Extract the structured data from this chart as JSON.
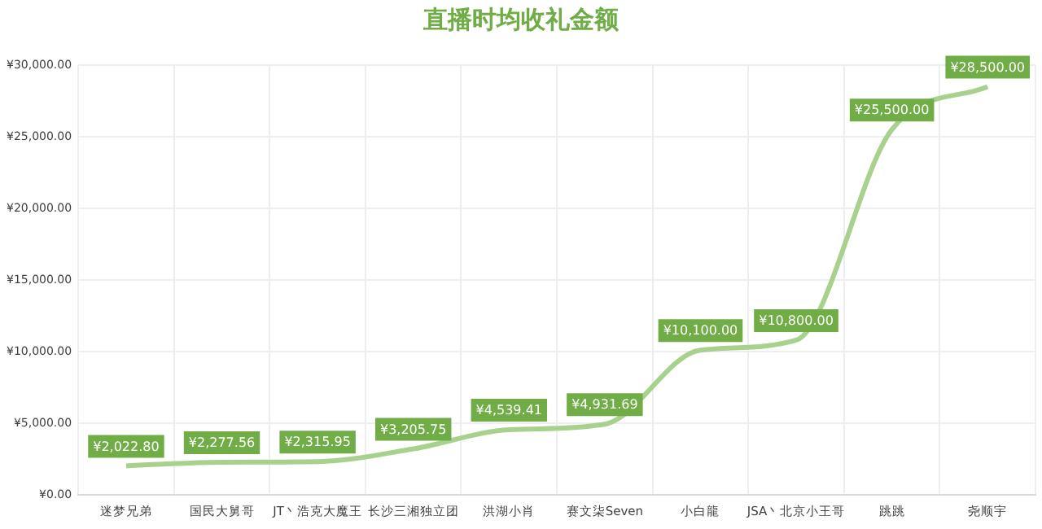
{
  "chart_data": {
    "type": "line",
    "title": "直播时均收礼金额",
    "categories": [
      "迷梦兄弟",
      "国民大舅哥",
      "JT丶浩克大魔王",
      "长沙三湘独立团",
      "洪湖小肖",
      "赛文柒Seven",
      "小白龍",
      "JSA丶北京小王哥",
      "跳跳",
      "尧顺宇"
    ],
    "series": [
      {
        "color": "#a9d18e",
        "values": [
          2022.8,
          2277.56,
          2315.95,
          3205.75,
          4539.41,
          4931.69,
          10100,
          10800,
          25500,
          28500
        ],
        "value_labels": [
          "¥2,022.80",
          "¥2,277.56",
          "¥2,315.95",
          "¥3,205.75",
          "¥4,539.41",
          "¥4,931.69",
          "¥10,100.00",
          "¥10,800.00",
          "¥25,500.00",
          "¥28,500.00"
        ]
      }
    ],
    "ylim": [
      0,
      30000
    ],
    "yticks": [
      {
        "value": 0,
        "label": "¥0.00"
      },
      {
        "value": 5000,
        "label": "¥5,000.00"
      },
      {
        "value": 10000,
        "label": "¥10,000.00"
      },
      {
        "value": 15000,
        "label": "¥15,000.00"
      },
      {
        "value": 20000,
        "label": "¥20,000.00"
      },
      {
        "value": 25000,
        "label": "¥25,000.00"
      },
      {
        "value": 30000,
        "label": "¥30,000.00"
      }
    ],
    "grid": true,
    "marker": "none",
    "line_style": "solid",
    "legend": false
  }
}
